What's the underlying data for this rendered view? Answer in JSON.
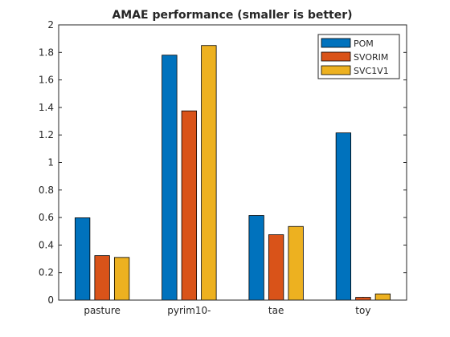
{
  "chart_data": {
    "type": "bar",
    "title": "AMAE performance (smaller is better)",
    "xlabel": "",
    "ylabel": "",
    "categories": [
      "pasture",
      "pyrim10-",
      "tae",
      "toy"
    ],
    "series": [
      {
        "name": "POM",
        "color": "#0072bd",
        "values": [
          0.598,
          1.78,
          0.615,
          1.215
        ]
      },
      {
        "name": "SVORIM",
        "color": "#d95319",
        "values": [
          0.323,
          1.375,
          0.475,
          0.02
        ]
      },
      {
        "name": "SVC1V1",
        "color": "#edb120",
        "values": [
          0.31,
          1.85,
          0.535,
          0.045
        ]
      }
    ],
    "ylim": [
      0,
      2
    ],
    "yticks": [
      "0",
      "0.2",
      "0.4",
      "0.6",
      "0.8",
      "1",
      "1.2",
      "1.4",
      "1.6",
      "1.8",
      "2"
    ],
    "grid": false,
    "legend_position": "top-right"
  }
}
